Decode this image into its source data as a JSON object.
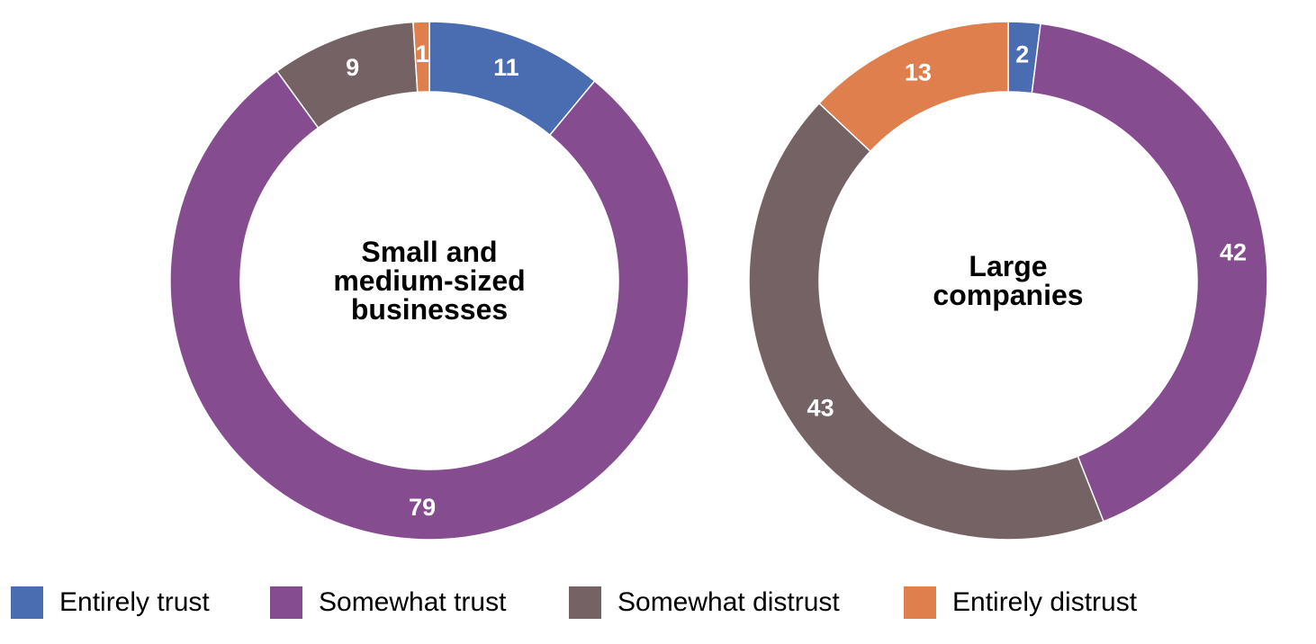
{
  "chart_data": [
    {
      "type": "pie",
      "variant": "donut",
      "title": "Small and medium-sized businesses",
      "title_lines": [
        "Small and",
        "medium-sized",
        "businesses"
      ],
      "categories": [
        "Entirely trust",
        "Somewhat trust",
        "Somewhat distrust",
        "Entirely distrust"
      ],
      "values": [
        11,
        79,
        9,
        1
      ],
      "labels": [
        "11",
        "79",
        "9",
        "1"
      ],
      "start": "12 o'clock",
      "direction": "clockwise"
    },
    {
      "type": "pie",
      "variant": "donut",
      "title": "Large companies",
      "title_lines": [
        "Large",
        "companies"
      ],
      "categories": [
        "Entirely trust",
        "Somewhat trust",
        "Somewhat distrust",
        "Entirely distrust"
      ],
      "values": [
        2,
        42,
        43,
        13
      ],
      "labels": [
        "2",
        "42",
        "43",
        "13"
      ],
      "start": "12 o'clock",
      "direction": "clockwise"
    }
  ],
  "legend": {
    "placement": "bottom",
    "items": [
      {
        "label": "Entirely trust",
        "color": "#4A6CB0"
      },
      {
        "label": "Somewhat trust",
        "color": "#854C90"
      },
      {
        "label": "Somewhat distrust",
        "color": "#746264"
      },
      {
        "label": "Entirely distrust",
        "color": "#E07F4E"
      }
    ]
  },
  "colors": {
    "label_text": "#FFFFFF",
    "center_text": "#000000",
    "separator": "#FFFFFF"
  }
}
